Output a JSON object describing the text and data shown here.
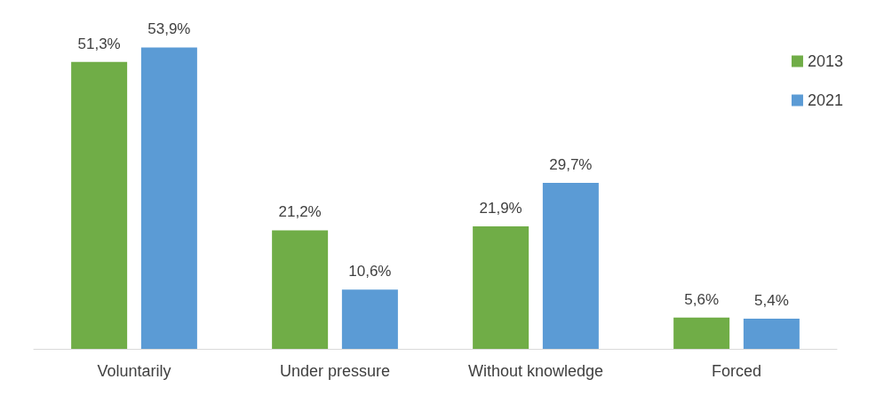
{
  "chart_data": {
    "type": "bar",
    "categories": [
      "Voluntarily",
      "Under pressure",
      "Without knowledge",
      "Forced"
    ],
    "series": [
      {
        "name": "2013",
        "color": "#70ad47",
        "values": [
          51.3,
          21.2,
          21.9,
          5.6
        ],
        "value_labels": [
          "51,3%",
          "21,2%",
          "21,9%",
          "5,6%"
        ]
      },
      {
        "name": "2021",
        "color": "#5b9bd5",
        "values": [
          53.9,
          10.6,
          29.7,
          5.4
        ],
        "value_labels": [
          "53,9%",
          "10,6%",
          "29,7%",
          "5,4%"
        ]
      }
    ],
    "legend": "top right"
  }
}
